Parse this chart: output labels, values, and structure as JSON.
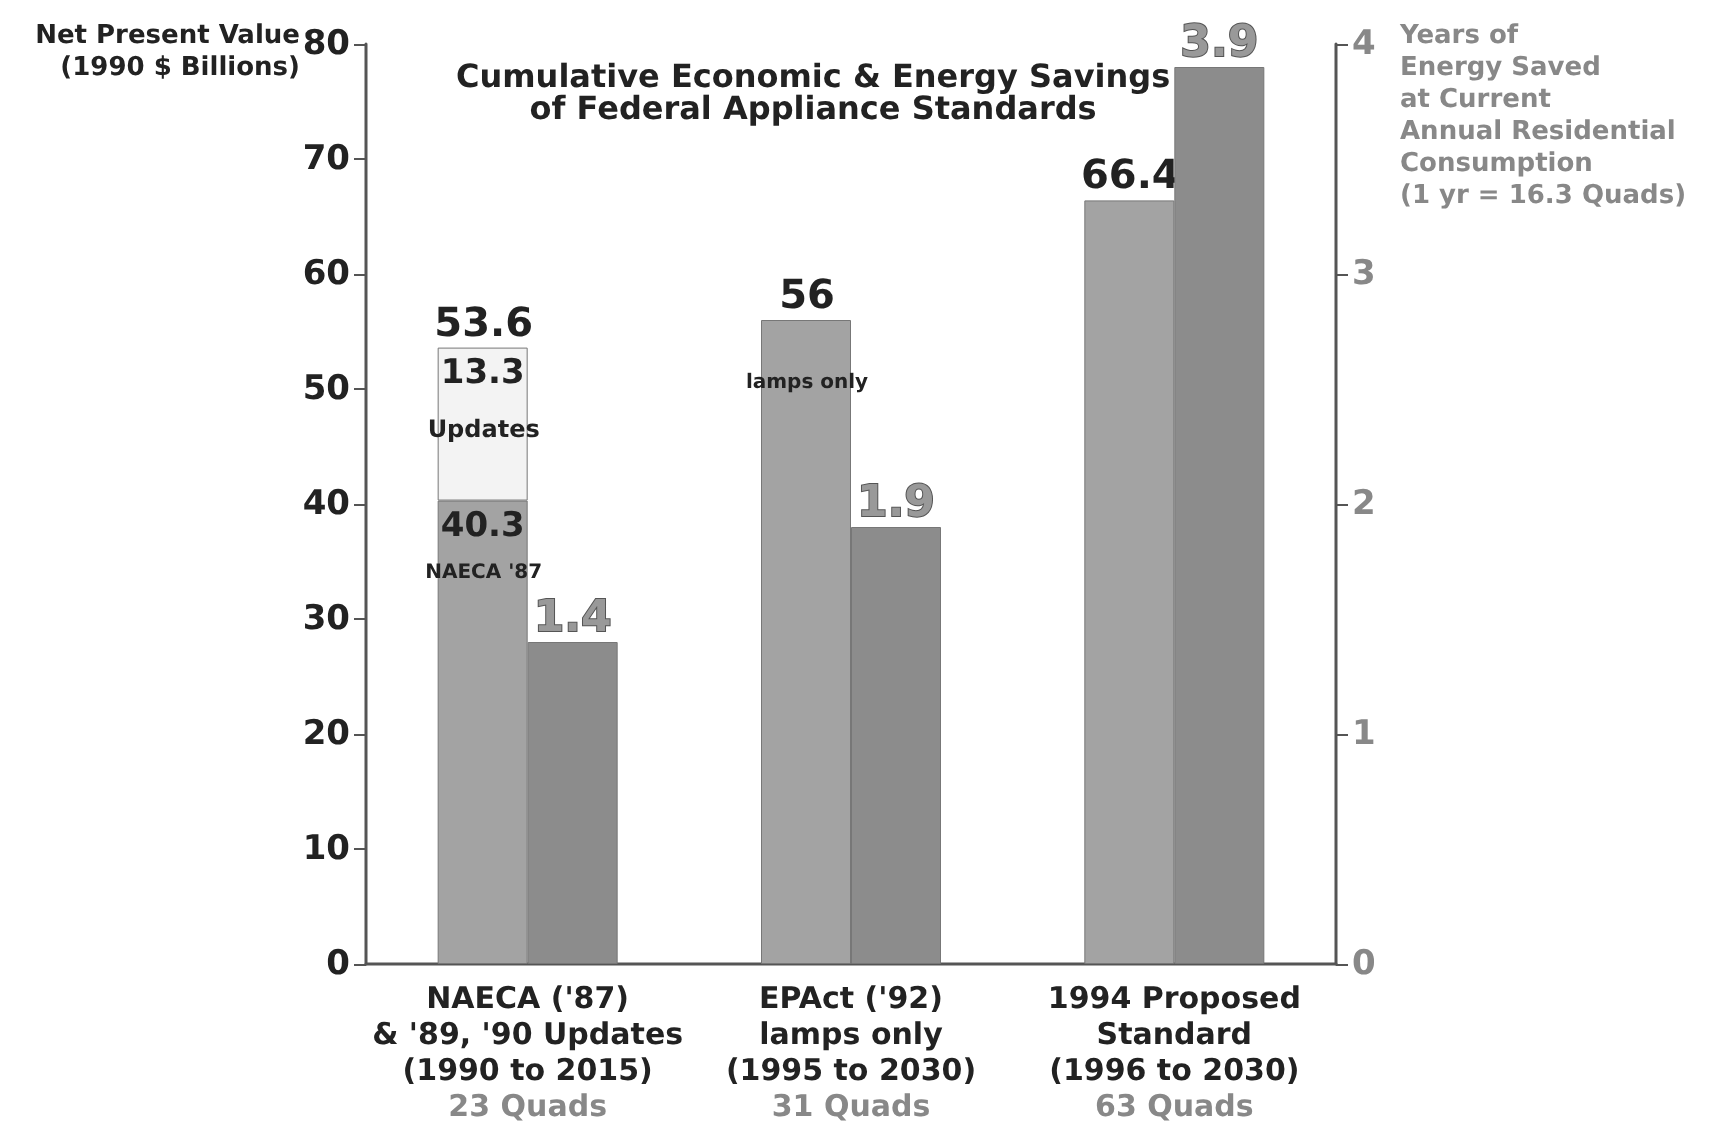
{
  "chart_data": {
    "type": "bar",
    "title": "Cumulative Economic & Energy Savings\nof Federal Appliance Standards",
    "ylabel": "Net Present Value\n(1990 $ Billions)",
    "y2label": "Years of\nEnergy Saved\nat Current\nAnnual Residential\nConsumption\n(1 yr = 16.3 Quads)",
    "categories": [
      "NAECA ('87)\n& '89, '90 Updates\n(1990 to 2015)\n23 Quads",
      "EPAct ('92)\nlamps only\n(1995 to 2030)\n31 Quads",
      "1994 Proposed\nStandard\n(1996 to 2030)\n63 Quads"
    ],
    "stacked": true,
    "series": [
      {
        "color": "#a3a3a3",
        "values": [
          40.3,
          56,
          66.4
        ],
        "value_labels": [
          "40.3",
          null,
          null
        ]
      },
      {
        "color": "#f3f3f3",
        "values": [
          13.3,
          null,
          null
        ],
        "value_labels": [
          "13.3",
          null,
          null
        ]
      },
      {
        "color": "#8c8c8c",
        "axis": "y2",
        "values": [
          1.4,
          1.9,
          3.9
        ],
        "value_labels": [
          "1.4",
          "1.9",
          "3.9"
        ]
      }
    ],
    "totals": [
      "53.6",
      "56",
      "66.4"
    ],
    "annotations": [
      {
        "text": "NAECA '87",
        "x": "NAECA ('87)\n& '89, '90 Updates\n(1990 to 2015)\n23 Quads",
        "y": 34
      },
      {
        "text": "Updates",
        "x": "NAECA ('87)\n& '89, '90 Updates\n(1990 to 2015)\n23 Quads",
        "y": 46.5
      },
      {
        "text": "lamps only",
        "x": "EPAct ('92)\nlamps only\n(1995 to 2030)\n31 Quads",
        "y": 50.5
      }
    ],
    "ylim": [
      0,
      80
    ],
    "yticks": [
      0,
      10,
      20,
      30,
      40,
      50,
      60,
      70,
      80
    ],
    "y2lim": [
      0,
      4
    ],
    "y2ticks": [
      0,
      1,
      2,
      3,
      4
    ],
    "grid": false
  }
}
